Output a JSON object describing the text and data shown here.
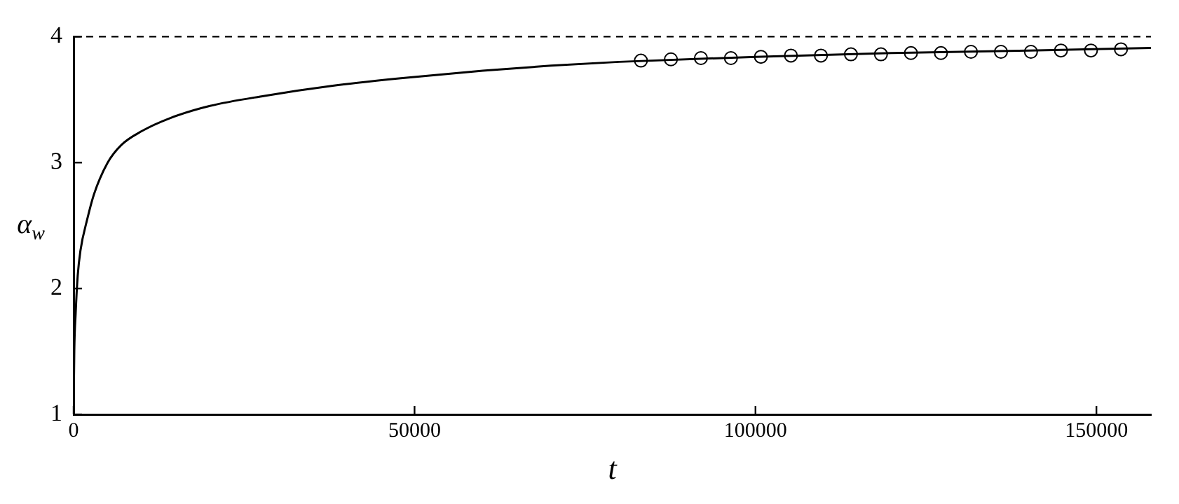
{
  "chart_data": {
    "type": "line",
    "xlabel": "t",
    "ylabel": "α$_{w}$",
    "xlim": [
      0,
      158000
    ],
    "ylim": [
      1,
      4
    ],
    "xticks": [
      0,
      50000,
      100000,
      150000
    ],
    "yticks": [
      1,
      2,
      3,
      4
    ],
    "grid": false,
    "legend": false,
    "series": [
      {
        "type": "line",
        "color": "#000000",
        "marker": "none",
        "line_style": "solid",
        "x": [
          0,
          100,
          300,
          600,
          1000,
          2000,
          3000,
          5000,
          7000,
          10000,
          14000,
          20000,
          28000,
          38000,
          48000,
          60000,
          70000,
          80000,
          100000,
          120000,
          140000,
          158000
        ],
        "values": [
          1,
          1.5,
          1.8,
          2.1,
          2.3,
          2.55,
          2.75,
          3.0,
          3.14,
          3.25,
          3.35,
          3.45,
          3.53,
          3.61,
          3.67,
          3.73,
          3.77,
          3.8,
          3.84,
          3.87,
          3.89,
          3.91
        ]
      },
      {
        "type": "scatter",
        "color": "#000000",
        "marker": "circle",
        "x": [
          83200,
          87600,
          92000,
          96400,
          100800,
          105200,
          109600,
          114000,
          118400,
          122800,
          127200,
          131600,
          136000,
          140400,
          144800,
          149200,
          153600
        ],
        "values": [
          3.81,
          3.82,
          3.83,
          3.83,
          3.84,
          3.85,
          3.85,
          3.86,
          3.86,
          3.87,
          3.87,
          3.88,
          3.88,
          3.88,
          3.89,
          3.89,
          3.9
        ]
      }
    ],
    "ref_lines": [
      {
        "axis": "y",
        "value": 4,
        "line_style": "dashed",
        "color": "#000000"
      }
    ]
  }
}
